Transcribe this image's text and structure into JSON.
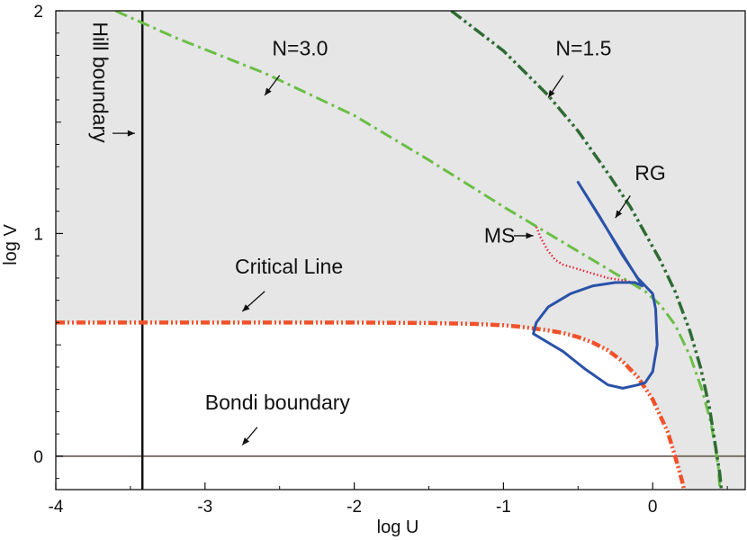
{
  "chart_data": {
    "type": "line",
    "xlabel": "log U",
    "ylabel": "log V",
    "xlim": [
      -4,
      0.62
    ],
    "ylim": [
      -0.15,
      2
    ],
    "grid": false,
    "xticks": [
      -4,
      -3,
      -2,
      -1,
      0
    ],
    "yticks": [
      0,
      1,
      2
    ],
    "xtick_labels": [
      "-4",
      "-3",
      "-2",
      "-1",
      "0"
    ],
    "ytick_labels": [
      "0",
      "1",
      "2"
    ],
    "shaded_region_color": "#e6e6e6",
    "series": [
      {
        "key": "critical",
        "color": "#f0522b",
        "style": "dash-dot-dot-thick",
        "x": [
          -4.0,
          -3.0,
          -2.0,
          -1.5,
          -1.2,
          -1.0,
          -0.9,
          -0.8,
          -0.7,
          -0.6,
          -0.5,
          -0.4,
          -0.3,
          -0.2,
          -0.1,
          0.0,
          0.1,
          0.15,
          0.18,
          0.2,
          0.21
        ],
        "y": [
          0.6,
          0.6,
          0.6,
          0.598,
          0.594,
          0.588,
          0.582,
          0.574,
          0.565,
          0.553,
          0.535,
          0.51,
          0.475,
          0.425,
          0.355,
          0.255,
          0.11,
          0.0,
          -0.07,
          -0.12,
          -0.15
        ]
      },
      {
        "key": "n3",
        "color": "#6abf45",
        "style": "dash-dot",
        "x": [
          -3.6,
          -3.2,
          -2.6,
          -2.0,
          -1.5,
          -1.0,
          -0.7,
          -0.4,
          -0.2,
          -0.05,
          0.05,
          0.15,
          0.25,
          0.33,
          0.39,
          0.42,
          0.44,
          0.45
        ],
        "y": [
          2.0,
          1.88,
          1.72,
          1.53,
          1.33,
          1.12,
          1.0,
          0.88,
          0.8,
          0.74,
          0.68,
          0.59,
          0.45,
          0.3,
          0.15,
          0.04,
          -0.05,
          -0.15
        ]
      },
      {
        "key": "n15",
        "color": "#2e6b34",
        "style": "dash-dot-dot",
        "x": [
          -1.35,
          -1.0,
          -0.7,
          -0.5,
          -0.3,
          -0.15,
          -0.05,
          0.05,
          0.15,
          0.25,
          0.32,
          0.38,
          0.42,
          0.45,
          0.46
        ],
        "y": [
          2.0,
          1.82,
          1.62,
          1.46,
          1.27,
          1.12,
          1.0,
          0.88,
          0.74,
          0.56,
          0.4,
          0.22,
          0.05,
          -0.08,
          -0.15
        ]
      },
      {
        "key": "ms",
        "color": "#e8233a",
        "style": "dotted",
        "x": [
          -0.78,
          -0.75,
          -0.7,
          -0.65,
          -0.6,
          -0.5,
          -0.4,
          -0.3,
          -0.2,
          -0.1,
          -0.05
        ],
        "y": [
          1.03,
          0.98,
          0.92,
          0.88,
          0.86,
          0.84,
          0.82,
          0.8,
          0.79,
          0.775,
          0.76
        ]
      },
      {
        "key": "rg",
        "color": "#2a52a8",
        "style": "solid",
        "x": [
          -0.5,
          -0.35,
          -0.2,
          -0.1,
          -0.05,
          0.0,
          0.02,
          0.03,
          0.0,
          -0.05,
          -0.1,
          -0.2,
          -0.3,
          -0.45,
          -0.6,
          -0.7,
          -0.8,
          -0.78,
          -0.7,
          -0.55,
          -0.4,
          -0.25,
          -0.12,
          -0.07
        ],
        "y": [
          1.23,
          1.07,
          0.9,
          0.8,
          0.765,
          0.73,
          0.66,
          0.5,
          0.38,
          0.33,
          0.32,
          0.305,
          0.32,
          0.39,
          0.47,
          0.51,
          0.55,
          0.6,
          0.67,
          0.73,
          0.765,
          0.78,
          0.78,
          0.765
        ]
      },
      {
        "key": "hill",
        "color": "#111111",
        "style": "solid",
        "x": [
          -3.42,
          -3.42
        ],
        "y": [
          -0.15,
          2.0
        ]
      },
      {
        "key": "bondi",
        "color": "#7a706a",
        "style": "solid",
        "x": [
          -4.0,
          0.62
        ],
        "y": [
          0.0,
          0.0
        ]
      }
    ],
    "annotations": [
      {
        "key": "n3_label",
        "text": "N=3.0",
        "x": -2.55,
        "y": 1.8,
        "arrow_from": [
          -2.5,
          1.71
        ],
        "arrow_to": [
          -2.6,
          1.62
        ]
      },
      {
        "key": "n15_label",
        "text": "N=1.5",
        "x": -0.65,
        "y": 1.8,
        "arrow_from": [
          -0.6,
          1.71
        ],
        "arrow_to": [
          -0.7,
          1.61
        ]
      },
      {
        "key": "rg_label",
        "text": "RG",
        "x": -0.12,
        "y": 1.24,
        "arrow_from": [
          -0.15,
          1.17
        ],
        "arrow_to": [
          -0.25,
          1.07
        ]
      },
      {
        "key": "ms_label",
        "text": "MS",
        "x": -1.13,
        "y": 0.96,
        "arrow_from": [
          -0.93,
          0.99
        ],
        "arrow_to": [
          -0.8,
          0.99
        ]
      },
      {
        "key": "critical_label",
        "text": "Critical Line",
        "x": -2.8,
        "y": 0.82,
        "arrow_from": [
          -2.6,
          0.74
        ],
        "arrow_to": [
          -2.75,
          0.65
        ]
      },
      {
        "key": "bondi_label",
        "text": "Bondi boundary",
        "x": -3.0,
        "y": 0.21,
        "arrow_from": [
          -2.65,
          0.13
        ],
        "arrow_to": [
          -2.75,
          0.05
        ]
      },
      {
        "key": "hill_label",
        "text": "Hill  boundary",
        "x": -3.75,
        "y": 1.95,
        "rotate": 90,
        "arrow_from": [
          -3.62,
          1.45
        ],
        "arrow_to": [
          -3.47,
          1.45
        ]
      }
    ]
  }
}
